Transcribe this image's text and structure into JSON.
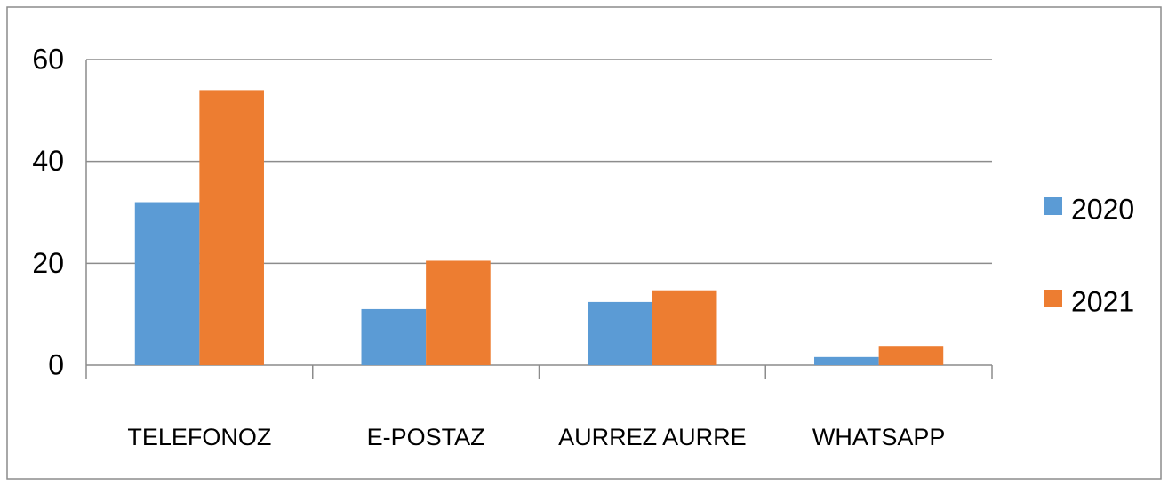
{
  "chart_data": {
    "type": "bar",
    "categories": [
      "TELEFONOZ",
      "E-POSTAZ",
      "AURREZ AURRE",
      "WHATSAPP"
    ],
    "series": [
      {
        "name": "2020",
        "color": "#5b9bd5",
        "values": [
          32,
          11,
          12.4,
          1.6
        ]
      },
      {
        "name": "2021",
        "color": "#ed7d31",
        "values": [
          54,
          20.5,
          14.7,
          3.8
        ]
      }
    ],
    "ylim": [
      0,
      60
    ],
    "yticks": [
      0,
      20,
      40,
      60
    ],
    "grid": true,
    "legend": "right"
  }
}
